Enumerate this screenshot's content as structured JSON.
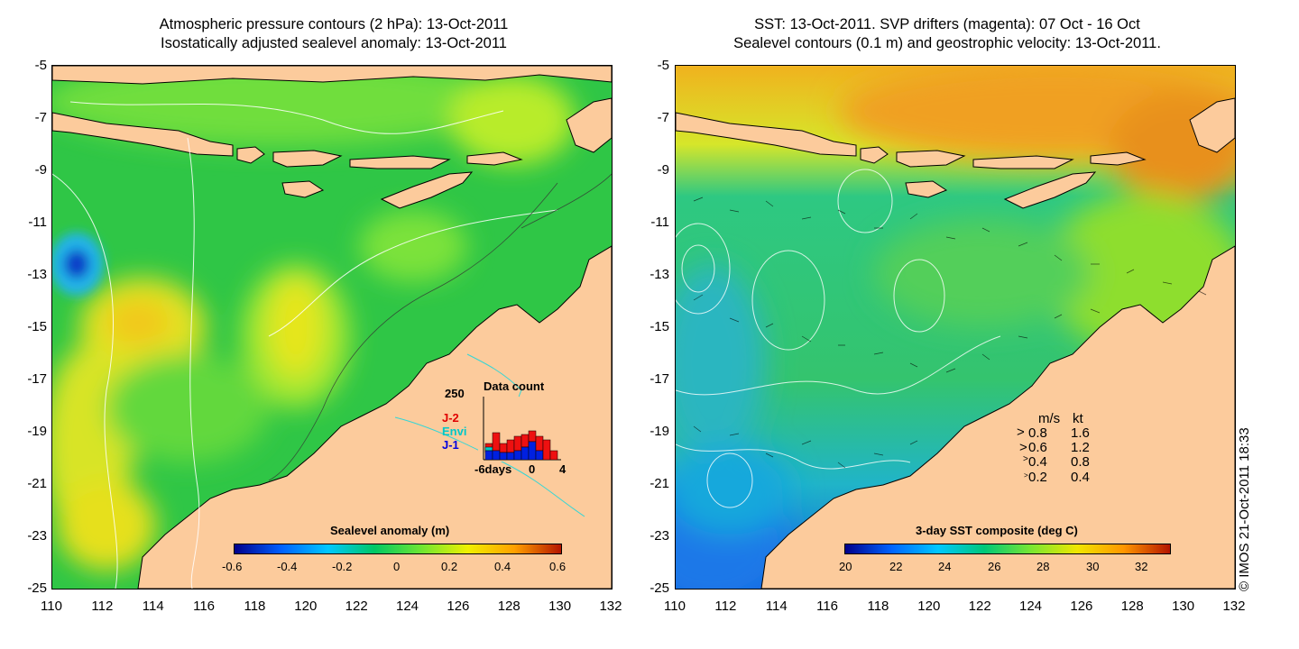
{
  "left": {
    "title_line1": "Atmospheric pressure contours (2 hPa): 13-Oct-2011",
    "title_line2": "Isostatically adjusted sealevel anomaly: 13-Oct-2011",
    "colorbar_title": "Sealevel anomaly (m)",
    "colorbar_ticks": [
      "-0.6",
      "-0.4",
      "-0.2",
      "0",
      "0.2",
      "0.4",
      "0.6"
    ],
    "inset": {
      "title": "Data count",
      "ymax": "250",
      "labels": [
        "J-2",
        "Envi",
        "J-1"
      ],
      "label_colors": [
        "#e00000",
        "#00c8c8",
        "#0000e0"
      ],
      "xticks": [
        "-6days",
        "0",
        "4"
      ]
    }
  },
  "right": {
    "title_line1": "SST: 13-Oct-2011. SVP drifters (magenta): 07 Oct - 16 Oct",
    "title_line2": "Sealevel contours (0.1 m) and geostrophic velocity: 13-Oct-2011.",
    "colorbar_title": "3-day SST composite (deg C)",
    "colorbar_ticks": [
      "20",
      "22",
      "24",
      "26",
      "28",
      "30",
      "32"
    ],
    "speed_legend": {
      "header_ms": "m/s",
      "header_kt": "kt",
      "rows": [
        {
          "ms": "0.8",
          "kt": "1.6"
        },
        {
          "ms": "0.6",
          "kt": "1.2"
        },
        {
          "ms": "0.4",
          "kt": "0.8"
        },
        {
          "ms": "0.2",
          "kt": "0.4"
        }
      ]
    }
  },
  "axes": {
    "y_ticks": [
      "-5",
      "-7",
      "-9",
      "-11",
      "-13",
      "-15",
      "-17",
      "-19",
      "-21",
      "-23",
      "-25"
    ],
    "x_ticks": [
      "110",
      "112",
      "114",
      "116",
      "118",
      "120",
      "122",
      "124",
      "126",
      "128",
      "130",
      "132"
    ]
  },
  "credit": "© IMOS 21-Oct-2011 18:33",
  "colors": {
    "land": "#fccb9c",
    "ssh_scale": [
      "#00008c",
      "#0060ff",
      "#00c8ff",
      "#00c864",
      "#6ee632",
      "#f0f000",
      "#ffa000",
      "#b41400"
    ],
    "sst_scale": [
      "#00008c",
      "#0064ff",
      "#00c8ff",
      "#00c878",
      "#78e632",
      "#f0e600",
      "#ff9600",
      "#b41400"
    ]
  }
}
